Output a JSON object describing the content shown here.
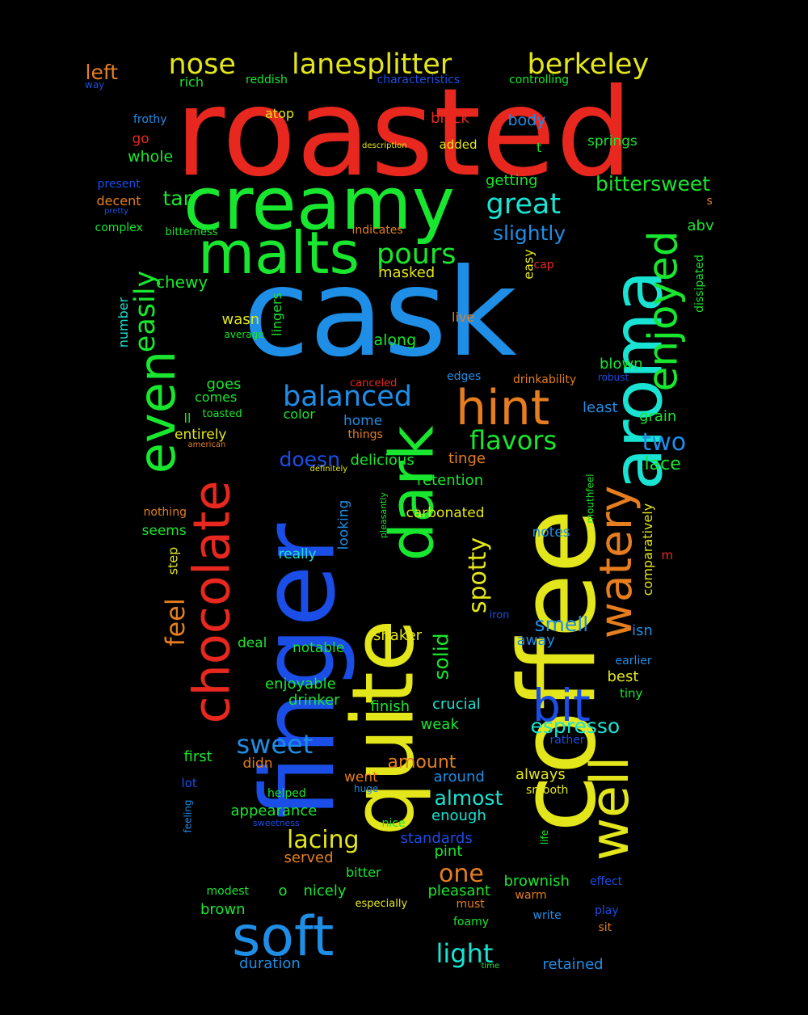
{
  "colors": {
    "background": "#000000",
    "red": "#e8281f",
    "blue": "#1f8ee6",
    "green": "#19e62e",
    "yellow": "#e3e61a",
    "cyan": "#19e3d2",
    "dark_blue": "#1a4ee6",
    "orange": "#e67e1f"
  },
  "words": [
    {
      "text": "roasted"
    },
    {
      "text": "cask"
    },
    {
      "text": "coffee"
    },
    {
      "text": "finger"
    },
    {
      "text": "quite"
    },
    {
      "text": "creamy"
    },
    {
      "text": "aroma"
    },
    {
      "text": "dark"
    },
    {
      "text": "malts"
    },
    {
      "text": "soft"
    },
    {
      "text": "well"
    },
    {
      "text": "chocolate"
    },
    {
      "text": "even"
    },
    {
      "text": "hint"
    },
    {
      "text": "watery"
    },
    {
      "text": "enjoyed"
    },
    {
      "text": "bit"
    },
    {
      "text": "nose"
    },
    {
      "text": "lanesplitter"
    },
    {
      "text": "berkeley"
    },
    {
      "text": "balanced"
    },
    {
      "text": "great"
    },
    {
      "text": "pours"
    },
    {
      "text": "easily"
    },
    {
      "text": "flavors"
    },
    {
      "text": "sweet"
    },
    {
      "text": "lacing"
    },
    {
      "text": "light"
    },
    {
      "text": "bittersweet"
    },
    {
      "text": "slightly"
    },
    {
      "text": "two"
    },
    {
      "text": "one"
    },
    {
      "text": "espresso"
    },
    {
      "text": "almost"
    },
    {
      "text": "spotty"
    },
    {
      "text": "feel"
    },
    {
      "text": "tan"
    },
    {
      "text": "left"
    },
    {
      "text": "doesn"
    },
    {
      "text": "smell"
    },
    {
      "text": "solid"
    },
    {
      "text": "amount"
    },
    {
      "text": "lace"
    },
    {
      "text": "chewy"
    },
    {
      "text": "rich"
    },
    {
      "text": "reddish"
    },
    {
      "text": "characteristics"
    },
    {
      "text": "controlling"
    },
    {
      "text": "way"
    },
    {
      "text": "frothy"
    },
    {
      "text": "atop"
    },
    {
      "text": "black"
    },
    {
      "text": "body"
    },
    {
      "text": "go"
    },
    {
      "text": "description"
    },
    {
      "text": "added"
    },
    {
      "text": "t"
    },
    {
      "text": "springs"
    },
    {
      "text": "whole"
    },
    {
      "text": "getting"
    },
    {
      "text": "present"
    },
    {
      "text": "decent"
    },
    {
      "text": "pretty"
    },
    {
      "text": "s"
    },
    {
      "text": "complex"
    },
    {
      "text": "bitterness"
    },
    {
      "text": "indicates"
    },
    {
      "text": "abv"
    },
    {
      "text": "easy"
    },
    {
      "text": "cap"
    },
    {
      "text": "masked"
    },
    {
      "text": "number"
    },
    {
      "text": "lingers"
    },
    {
      "text": "wasn"
    },
    {
      "text": "average"
    },
    {
      "text": "live"
    },
    {
      "text": "dissipated"
    },
    {
      "text": "along"
    },
    {
      "text": "blown"
    },
    {
      "text": "goes"
    },
    {
      "text": "canceled"
    },
    {
      "text": "edges"
    },
    {
      "text": "drinkability"
    },
    {
      "text": "robust"
    },
    {
      "text": "comes"
    },
    {
      "text": "least"
    },
    {
      "text": "ll"
    },
    {
      "text": "toasted"
    },
    {
      "text": "color"
    },
    {
      "text": "home"
    },
    {
      "text": "grain"
    },
    {
      "text": "entirely"
    },
    {
      "text": "things"
    },
    {
      "text": "american"
    },
    {
      "text": "delicious"
    },
    {
      "text": "tinge"
    },
    {
      "text": "definitely"
    },
    {
      "text": "mouthfeel"
    },
    {
      "text": "retention"
    },
    {
      "text": "pleasantly"
    },
    {
      "text": "looking"
    },
    {
      "text": "nothing"
    },
    {
      "text": "carbonated"
    },
    {
      "text": "comparatively"
    },
    {
      "text": "seems"
    },
    {
      "text": "notes"
    },
    {
      "text": "m"
    },
    {
      "text": "step"
    },
    {
      "text": "really"
    },
    {
      "text": "iron"
    },
    {
      "text": "away"
    },
    {
      "text": "isn"
    },
    {
      "text": "shaker"
    },
    {
      "text": "deal"
    },
    {
      "text": "notable"
    },
    {
      "text": "earlier"
    },
    {
      "text": "best"
    },
    {
      "text": "enjoyable"
    },
    {
      "text": "tiny"
    },
    {
      "text": "drinker"
    },
    {
      "text": "crucial"
    },
    {
      "text": "finish"
    },
    {
      "text": "weak"
    },
    {
      "text": "rather"
    },
    {
      "text": "first"
    },
    {
      "text": "didn"
    },
    {
      "text": "lot"
    },
    {
      "text": "went"
    },
    {
      "text": "around"
    },
    {
      "text": "always"
    },
    {
      "text": "helped"
    },
    {
      "text": "huge"
    },
    {
      "text": "smooth"
    },
    {
      "text": "feeling"
    },
    {
      "text": "appearance"
    },
    {
      "text": "enough"
    },
    {
      "text": "sweetness"
    },
    {
      "text": "nice"
    },
    {
      "text": "life"
    },
    {
      "text": "standards"
    },
    {
      "text": "pint"
    },
    {
      "text": "served"
    },
    {
      "text": "bitter"
    },
    {
      "text": "brownish"
    },
    {
      "text": "effect"
    },
    {
      "text": "modest"
    },
    {
      "text": "o"
    },
    {
      "text": "nicely"
    },
    {
      "text": "pleasant"
    },
    {
      "text": "warm"
    },
    {
      "text": "especially"
    },
    {
      "text": "must"
    },
    {
      "text": "brown"
    },
    {
      "text": "write"
    },
    {
      "text": "play"
    },
    {
      "text": "foamy"
    },
    {
      "text": "sit"
    },
    {
      "text": "duration"
    },
    {
      "text": "time"
    },
    {
      "text": "retained"
    }
  ]
}
